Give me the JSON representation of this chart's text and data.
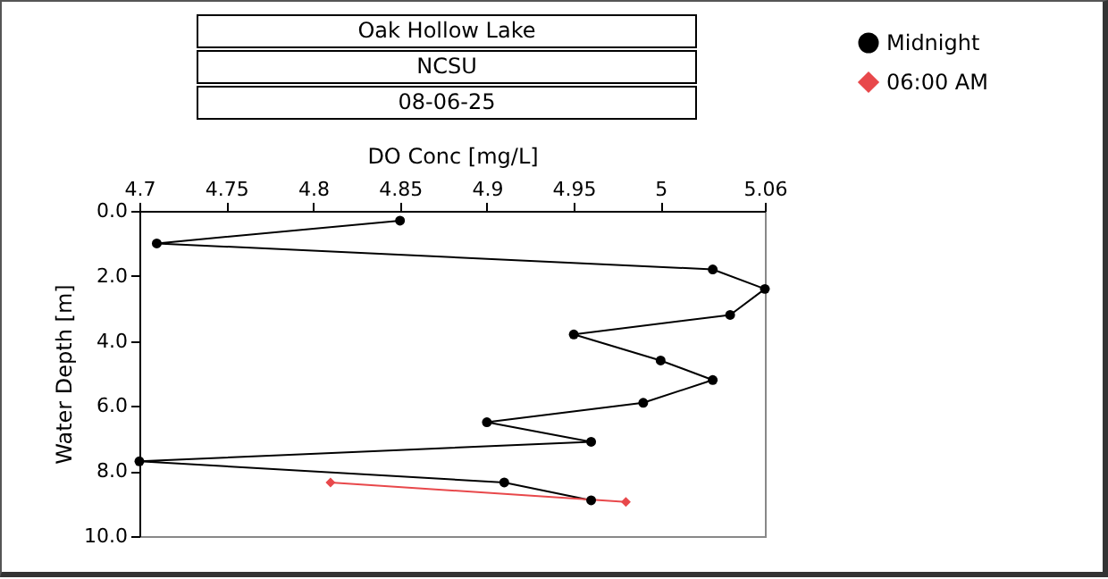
{
  "chart_data": {
    "type": "line",
    "title": "Oak Hollow Lake",
    "subtitle": "NCSU",
    "annotations": [
      "08-06-25"
    ],
    "xlabel": "DO Conc [mg/L]",
    "ylabel": "Water Depth [m]",
    "xlim": [
      4.7,
      5.06
    ],
    "xticks": [
      4.7,
      4.75,
      4.8,
      4.85,
      4.9,
      4.95,
      5,
      5.06
    ],
    "ylim": [
      10,
      0
    ],
    "yticks": [
      {
        "value": 0,
        "label": "0.0"
      },
      {
        "value": 2,
        "label": "2.0"
      },
      {
        "value": 4,
        "label": "4.0"
      },
      {
        "value": 6,
        "label": "6.0"
      },
      {
        "value": 8,
        "label": "8.0"
      },
      {
        "value": 10,
        "label": "10.0"
      }
    ],
    "grid": false,
    "legend": "top right",
    "line_style": "solid",
    "series": [
      {
        "name": "Midnight",
        "color": "#000000",
        "marker": "circle",
        "x": [
          4.85,
          4.71,
          5.03,
          5.06,
          5.04,
          4.95,
          5.0,
          5.03,
          4.99,
          4.9,
          4.96,
          4.7,
          4.91,
          4.96
        ],
        "values": [
          0.3,
          1.0,
          1.8,
          2.4,
          3.2,
          3.8,
          4.6,
          5.2,
          5.9,
          6.5,
          7.1,
          7.7,
          8.35,
          8.9
        ]
      },
      {
        "name": "06:00 AM",
        "color": "#e8484b",
        "marker": "diamond",
        "x": [
          4.81,
          4.98
        ],
        "values": [
          8.35,
          8.95
        ]
      }
    ]
  }
}
